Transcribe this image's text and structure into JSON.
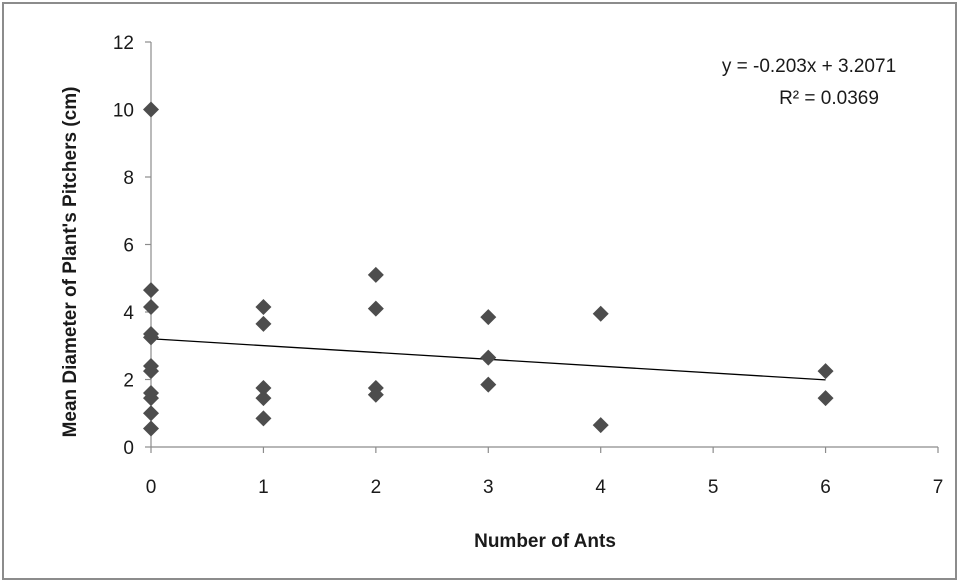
{
  "chart_data": {
    "type": "scatter",
    "title": "",
    "xlabel": "Number of Ants",
    "ylabel": "Mean Diameter of Plant's Pitchers (cm)",
    "xlim": [
      0,
      7
    ],
    "ylim": [
      0,
      12
    ],
    "x_ticks": [
      "0",
      "1",
      "2",
      "3",
      "4",
      "5",
      "6",
      "7"
    ],
    "y_ticks": [
      "0",
      "2",
      "4",
      "6",
      "8",
      "10",
      "12"
    ],
    "grid": false,
    "marker": "diamond",
    "marker_color": "#4d4d4d",
    "points": [
      {
        "x": 0,
        "y": 10.0
      },
      {
        "x": 0,
        "y": 4.65
      },
      {
        "x": 0,
        "y": 4.15
      },
      {
        "x": 0,
        "y": 3.35
      },
      {
        "x": 0,
        "y": 3.25
      },
      {
        "x": 0,
        "y": 2.4
      },
      {
        "x": 0,
        "y": 2.25
      },
      {
        "x": 0,
        "y": 1.6
      },
      {
        "x": 0,
        "y": 1.45
      },
      {
        "x": 0,
        "y": 1.0
      },
      {
        "x": 0,
        "y": 0.55
      },
      {
        "x": 1,
        "y": 4.15
      },
      {
        "x": 1,
        "y": 3.65
      },
      {
        "x": 1,
        "y": 1.75
      },
      {
        "x": 1,
        "y": 1.45
      },
      {
        "x": 1,
        "y": 0.85
      },
      {
        "x": 2,
        "y": 5.1
      },
      {
        "x": 2,
        "y": 4.1
      },
      {
        "x": 2,
        "y": 1.75
      },
      {
        "x": 2,
        "y": 1.55
      },
      {
        "x": 3,
        "y": 3.85
      },
      {
        "x": 3,
        "y": 2.65
      },
      {
        "x": 3,
        "y": 1.85
      },
      {
        "x": 4,
        "y": 3.95
      },
      {
        "x": 4,
        "y": 0.65
      },
      {
        "x": 6,
        "y": 2.25
      },
      {
        "x": 6,
        "y": 1.45
      }
    ],
    "trendline": {
      "type": "linear",
      "slope": -0.203,
      "intercept": 3.2071,
      "x_range": [
        0,
        6
      ],
      "equation": "y = -0.203x + 3.2071",
      "r_squared": "R² = 0.0369"
    }
  }
}
